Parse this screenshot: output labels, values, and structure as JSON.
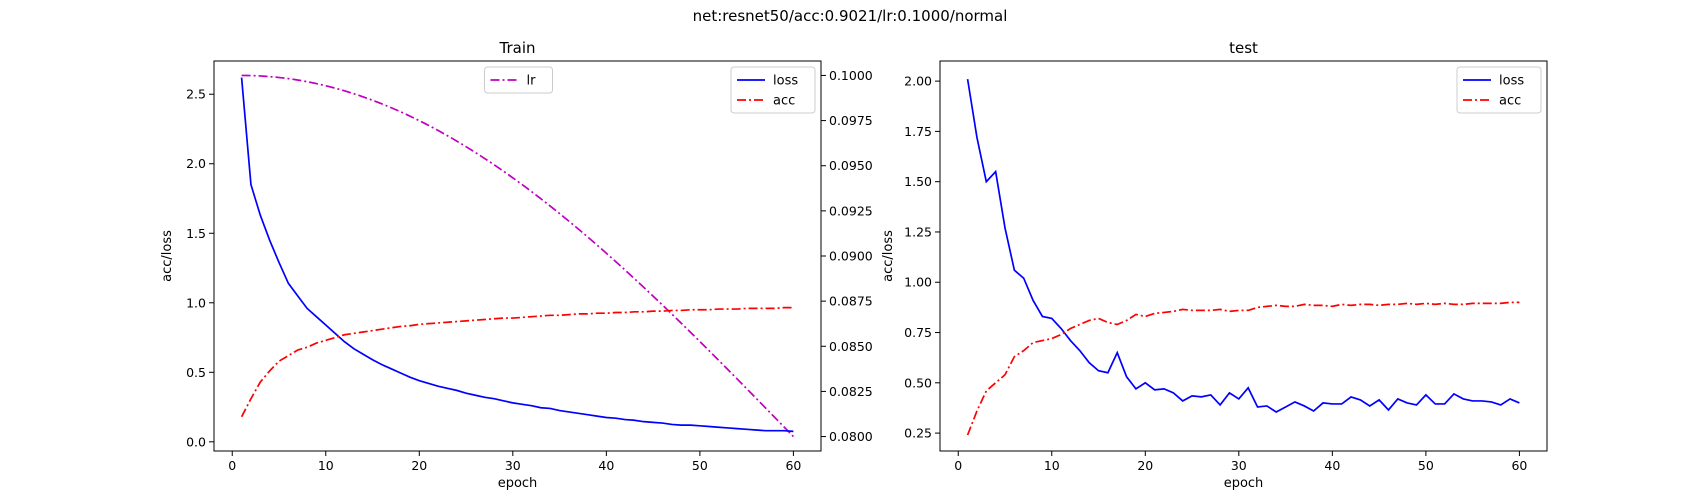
{
  "figure": {
    "title": "net:resnet50/acc:0.9021/lr:0.1000/normal"
  },
  "chart_data": [
    {
      "type": "line",
      "title": "Train",
      "xlabel": "epoch",
      "ylabel": "acc/loss",
      "xlim": [
        -1.95,
        62.95
      ],
      "ylim": [
        -0.066,
        2.739
      ],
      "xticks": [
        0,
        10,
        20,
        30,
        40,
        50,
        60
      ],
      "yticks": [
        0.0,
        0.5,
        1.0,
        1.5,
        2.0,
        2.5
      ],
      "ytick_labels": [
        "0.0",
        "0.5",
        "1.0",
        "1.5",
        "2.0",
        "2.5"
      ],
      "legend": "top-right",
      "series": [
        {
          "name": "loss",
          "color": "#0000ff",
          "dash": "solid",
          "axis": "left",
          "x": [
            1,
            2,
            3,
            4,
            5,
            6,
            7,
            8,
            9,
            10,
            11,
            12,
            13,
            14,
            15,
            16,
            17,
            18,
            19,
            20,
            21,
            22,
            23,
            24,
            25,
            26,
            27,
            28,
            29,
            30,
            31,
            32,
            33,
            34,
            35,
            36,
            37,
            38,
            39,
            40,
            41,
            42,
            43,
            44,
            45,
            46,
            47,
            48,
            49,
            50,
            51,
            52,
            53,
            54,
            55,
            56,
            57,
            58,
            59,
            60
          ],
          "y": [
            2.62,
            1.85,
            1.63,
            1.45,
            1.29,
            1.14,
            1.05,
            0.96,
            0.9,
            0.84,
            0.78,
            0.72,
            0.67,
            0.63,
            0.59,
            0.555,
            0.525,
            0.495,
            0.465,
            0.44,
            0.42,
            0.4,
            0.385,
            0.37,
            0.35,
            0.335,
            0.32,
            0.31,
            0.295,
            0.28,
            0.27,
            0.26,
            0.245,
            0.24,
            0.225,
            0.215,
            0.205,
            0.195,
            0.185,
            0.175,
            0.17,
            0.16,
            0.155,
            0.145,
            0.14,
            0.135,
            0.125,
            0.12,
            0.12,
            0.115,
            0.11,
            0.105,
            0.1,
            0.095,
            0.09,
            0.085,
            0.08,
            0.08,
            0.08,
            0.075
          ]
        },
        {
          "name": "acc",
          "color": "#ff0000",
          "dash": "dashdot",
          "axis": "left",
          "x": [
            1,
            2,
            3,
            4,
            5,
            6,
            7,
            8,
            9,
            10,
            11,
            12,
            13,
            14,
            15,
            16,
            17,
            18,
            19,
            20,
            21,
            22,
            23,
            24,
            25,
            26,
            27,
            28,
            29,
            30,
            31,
            32,
            33,
            34,
            35,
            36,
            37,
            38,
            39,
            40,
            41,
            42,
            43,
            44,
            45,
            46,
            47,
            48,
            49,
            50,
            51,
            52,
            53,
            54,
            55,
            56,
            57,
            58,
            59,
            60
          ],
          "y": [
            0.18,
            0.31,
            0.43,
            0.51,
            0.58,
            0.62,
            0.66,
            0.68,
            0.71,
            0.73,
            0.75,
            0.77,
            0.78,
            0.79,
            0.8,
            0.81,
            0.82,
            0.83,
            0.835,
            0.845,
            0.85,
            0.855,
            0.86,
            0.865,
            0.87,
            0.875,
            0.88,
            0.885,
            0.89,
            0.89,
            0.895,
            0.9,
            0.905,
            0.91,
            0.91,
            0.915,
            0.92,
            0.92,
            0.925,
            0.925,
            0.93,
            0.93,
            0.935,
            0.935,
            0.94,
            0.94,
            0.945,
            0.945,
            0.95,
            0.95,
            0.95,
            0.955,
            0.955,
            0.955,
            0.96,
            0.96,
            0.96,
            0.96,
            0.965,
            0.965
          ]
        }
      ],
      "secondary_axis": {
        "ylim": [
          0.0792,
          0.1008
        ],
        "yticks": [
          0.08,
          0.0825,
          0.085,
          0.0875,
          0.09,
          0.0925,
          0.095,
          0.0975,
          0.1
        ],
        "ytick_labels": [
          "0.0800",
          "0.0825",
          "0.0850",
          "0.0875",
          "0.0900",
          "0.0925",
          "0.0950",
          "0.0975",
          "0.1000"
        ],
        "legend": "top-center",
        "series": [
          {
            "name": "lr",
            "color": "#bf00bf",
            "dash": "dashdot",
            "formula": "cosine",
            "x_start": 1,
            "x_end": 60,
            "y_start": 0.1,
            "y_end": 0.08
          }
        ]
      }
    },
    {
      "type": "line",
      "title": "test",
      "xlabel": "epoch",
      "ylabel": "acc/loss",
      "xlim": [
        -1.95,
        62.95
      ],
      "ylim": [
        0.161,
        2.1
      ],
      "xticks": [
        0,
        10,
        20,
        30,
        40,
        50,
        60
      ],
      "yticks": [
        0.25,
        0.5,
        0.75,
        1.0,
        1.25,
        1.5,
        1.75,
        2.0
      ],
      "ytick_labels": [
        "0.25",
        "0.50",
        "0.75",
        "1.00",
        "1.25",
        "1.50",
        "1.75",
        "2.00"
      ],
      "legend": "top-right",
      "series": [
        {
          "name": "loss",
          "color": "#0000ff",
          "dash": "solid",
          "axis": "left",
          "x": [
            1,
            2,
            3,
            4,
            5,
            6,
            7,
            8,
            9,
            10,
            11,
            12,
            13,
            14,
            15,
            16,
            17,
            18,
            19,
            20,
            21,
            22,
            23,
            24,
            25,
            26,
            27,
            28,
            29,
            30,
            31,
            32,
            33,
            34,
            35,
            36,
            37,
            38,
            39,
            40,
            41,
            42,
            43,
            44,
            45,
            46,
            47,
            48,
            49,
            50,
            51,
            52,
            53,
            54,
            55,
            56,
            57,
            58,
            59,
            60
          ],
          "y": [
            2.01,
            1.72,
            1.5,
            1.55,
            1.27,
            1.06,
            1.02,
            0.91,
            0.83,
            0.82,
            0.77,
            0.71,
            0.66,
            0.6,
            0.56,
            0.55,
            0.65,
            0.53,
            0.47,
            0.5,
            0.465,
            0.47,
            0.45,
            0.41,
            0.435,
            0.43,
            0.44,
            0.39,
            0.45,
            0.42,
            0.475,
            0.38,
            0.385,
            0.355,
            0.38,
            0.405,
            0.385,
            0.36,
            0.4,
            0.395,
            0.395,
            0.43,
            0.415,
            0.385,
            0.415,
            0.365,
            0.42,
            0.4,
            0.39,
            0.44,
            0.395,
            0.395,
            0.445,
            0.42,
            0.41,
            0.41,
            0.405,
            0.39,
            0.42,
            0.4
          ]
        },
        {
          "name": "acc",
          "color": "#ff0000",
          "dash": "dashdot",
          "axis": "left",
          "x": [
            1,
            2,
            3,
            4,
            5,
            6,
            7,
            8,
            9,
            10,
            11,
            12,
            13,
            14,
            15,
            16,
            17,
            18,
            19,
            20,
            21,
            22,
            23,
            24,
            25,
            26,
            27,
            28,
            29,
            30,
            31,
            32,
            33,
            34,
            35,
            36,
            37,
            38,
            39,
            40,
            41,
            42,
            43,
            44,
            45,
            46,
            47,
            48,
            49,
            50,
            51,
            52,
            53,
            54,
            55,
            56,
            57,
            58,
            59,
            60
          ],
          "y": [
            0.24,
            0.36,
            0.46,
            0.5,
            0.54,
            0.63,
            0.66,
            0.7,
            0.71,
            0.72,
            0.74,
            0.77,
            0.79,
            0.81,
            0.82,
            0.8,
            0.79,
            0.81,
            0.84,
            0.83,
            0.845,
            0.85,
            0.855,
            0.865,
            0.86,
            0.86,
            0.86,
            0.865,
            0.855,
            0.86,
            0.86,
            0.875,
            0.88,
            0.885,
            0.88,
            0.88,
            0.89,
            0.885,
            0.885,
            0.88,
            0.89,
            0.885,
            0.89,
            0.89,
            0.885,
            0.89,
            0.89,
            0.895,
            0.89,
            0.895,
            0.89,
            0.895,
            0.89,
            0.89,
            0.895,
            0.895,
            0.895,
            0.895,
            0.9,
            0.9
          ]
        }
      ]
    }
  ]
}
